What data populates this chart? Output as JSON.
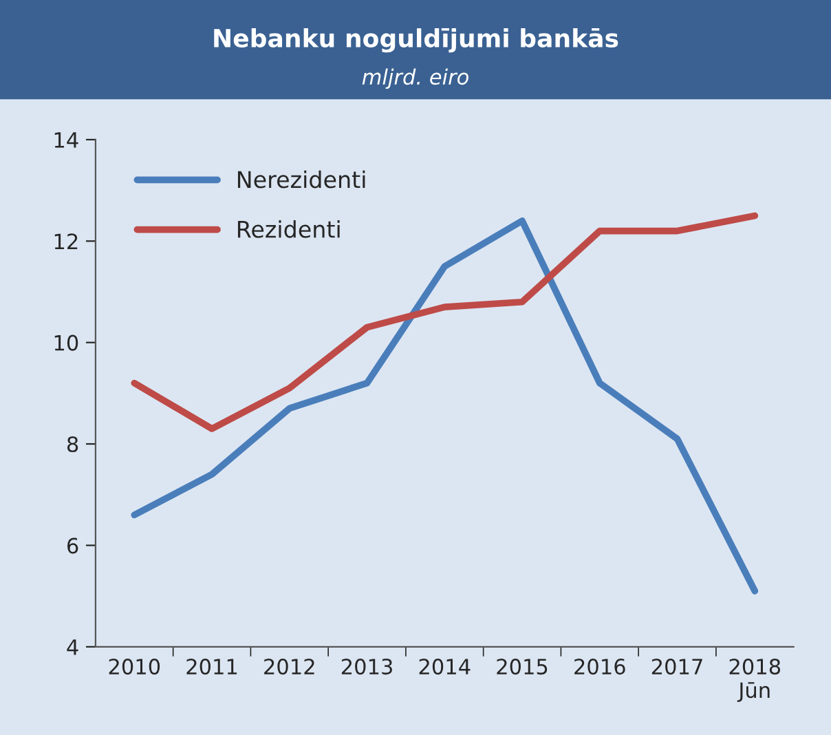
{
  "chart_data": {
    "type": "line",
    "title": "Nebanku noguldījumi bankās",
    "subtitle": "mljrd. eiro",
    "categories": [
      "2010",
      "2011",
      "2012",
      "2013",
      "2014",
      "2015",
      "2016",
      "2017",
      "2018\nJūn"
    ],
    "series": [
      {
        "name": "Nerezidenti",
        "color": "#4a7ebb",
        "values": [
          6.6,
          7.4,
          8.7,
          9.2,
          11.5,
          12.4,
          9.2,
          8.1,
          5.1
        ]
      },
      {
        "name": "Rezidenti",
        "color": "#be4b48",
        "values": [
          9.2,
          8.3,
          9.1,
          10.3,
          10.7,
          10.8,
          12.2,
          12.2,
          12.5
        ]
      }
    ],
    "ylim": [
      4,
      14
    ],
    "yticks": [
      4,
      6,
      8,
      10,
      12,
      14
    ],
    "grid": false,
    "legend": "top left",
    "marker": "none",
    "line_style": "solid"
  }
}
